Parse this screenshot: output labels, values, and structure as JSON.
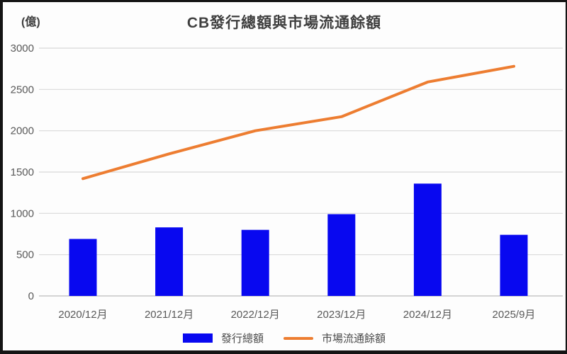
{
  "chart_data": {
    "type": "combo",
    "title": "CB發行總額與市場流通餘額",
    "unit_label": "(億)",
    "categories": [
      "2020/12月",
      "2021/12月",
      "2022/12月",
      "2023/12月",
      "2024/12月",
      "2025/9月"
    ],
    "series": [
      {
        "name": "發行總額",
        "type": "bar",
        "color": "#0808F0",
        "values": [
          690,
          830,
          800,
          990,
          1360,
          740
        ]
      },
      {
        "name": "市場流通餘額",
        "type": "line",
        "color": "#ED7D31",
        "values": [
          1420,
          1720,
          2000,
          2170,
          2590,
          2780
        ]
      }
    ],
    "ylim": [
      0,
      3000
    ],
    "yticks": [
      0,
      500,
      1000,
      1500,
      2000,
      2500,
      3000
    ],
    "grid": "horizontal",
    "grid_color": "#D9D9D9",
    "axis_line_color": "#BDBDBD",
    "tick_label_color": "#595959",
    "legend_position": "bottom"
  }
}
